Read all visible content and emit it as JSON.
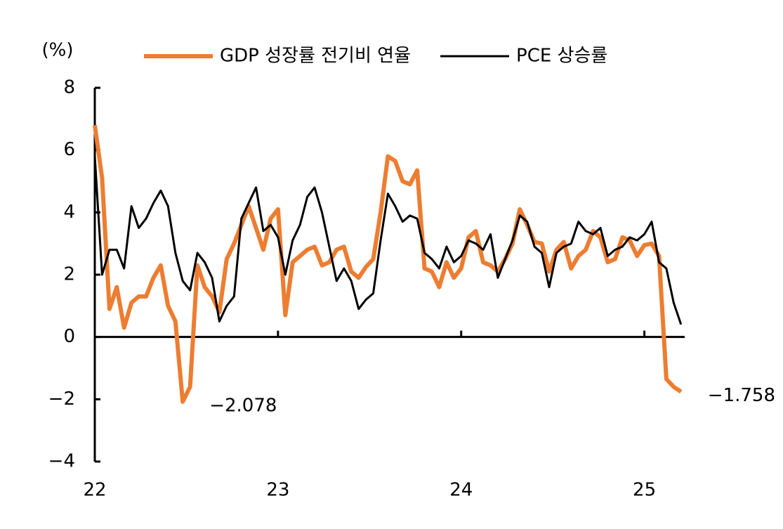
{
  "chart_data": {
    "type": "line",
    "y_label": "(%)",
    "x": [
      22,
      22.04,
      22.08,
      22.12,
      22.16,
      22.2,
      22.24,
      22.28,
      22.32,
      22.36,
      22.4,
      22.44,
      22.48,
      22.52,
      22.56,
      22.6,
      22.64,
      22.68,
      22.72,
      22.76,
      22.8,
      22.84,
      22.88,
      22.92,
      22.96,
      23,
      23.04,
      23.08,
      23.12,
      23.16,
      23.2,
      23.24,
      23.28,
      23.32,
      23.36,
      23.4,
      23.44,
      23.48,
      23.52,
      23.56,
      23.6,
      23.64,
      23.68,
      23.72,
      23.76,
      23.8,
      23.84,
      23.88,
      23.92,
      23.96,
      24,
      24.04,
      24.08,
      24.12,
      24.16,
      24.2,
      24.24,
      24.28,
      24.32,
      24.36,
      24.4,
      24.44,
      24.48,
      24.52,
      24.56,
      24.6,
      24.64,
      24.68,
      24.72,
      24.76,
      24.8,
      24.84,
      24.88,
      24.92,
      24.96,
      25,
      25.04,
      25.08,
      25.12,
      25.16,
      25.2
    ],
    "series": [
      {
        "name": "GDP 성장률 전기비 연율",
        "color": "#ed7d31",
        "width": 6,
        "values": [
          6.8,
          5.1,
          0.9,
          1.6,
          0.3,
          1.1,
          1.3,
          1.3,
          1.9,
          2.3,
          1.0,
          0.5,
          -2.078,
          -1.6,
          2.3,
          1.6,
          1.3,
          0.8,
          2.5,
          3.0,
          3.6,
          4.2,
          3.5,
          2.8,
          3.8,
          4.1,
          0.7,
          2.4,
          2.6,
          2.8,
          2.9,
          2.3,
          2.4,
          2.8,
          2.9,
          2.1,
          1.9,
          2.25,
          2.5,
          4.0,
          5.8,
          5.65,
          5.0,
          4.9,
          5.35,
          2.2,
          2.1,
          1.6,
          2.4,
          1.9,
          2.2,
          3.2,
          3.4,
          2.4,
          2.3,
          2.1,
          2.5,
          3.0,
          4.1,
          3.6,
          3.05,
          3.0,
          2.1,
          2.8,
          3.05,
          2.2,
          2.6,
          2.8,
          3.4,
          3.2,
          2.4,
          2.5,
          3.2,
          3.1,
          2.6,
          2.95,
          3.0,
          2.6,
          -1.35,
          -1.6,
          -1.758
        ],
        "value_labels": [
          null,
          null,
          null,
          null,
          null,
          null,
          null,
          null,
          null,
          null,
          null,
          null,
          "−2.078",
          null,
          null,
          null,
          null,
          null,
          null,
          null,
          null,
          null,
          null,
          null,
          null,
          null,
          null,
          null,
          null,
          null,
          null,
          null,
          null,
          null,
          null,
          null,
          null,
          null,
          null,
          null,
          null,
          null,
          null,
          null,
          null,
          null,
          null,
          null,
          null,
          null,
          null,
          null,
          null,
          null,
          null,
          null,
          null,
          null,
          null,
          null,
          null,
          null,
          null,
          null,
          null,
          null,
          null,
          null,
          null,
          null,
          null,
          null,
          null,
          null,
          null,
          null,
          null,
          null,
          null,
          null,
          "−1.758"
        ]
      },
      {
        "name": "PCE 상승률",
        "color": "#000000",
        "width": 3,
        "values": [
          5.8,
          2.0,
          2.8,
          2.8,
          2.2,
          4.2,
          3.5,
          3.8,
          4.3,
          4.7,
          4.2,
          2.7,
          1.8,
          1.5,
          2.7,
          2.4,
          1.9,
          0.5,
          1.0,
          1.3,
          3.8,
          4.3,
          4.8,
          3.4,
          3.6,
          3.2,
          2.0,
          3.1,
          3.6,
          4.5,
          4.8,
          4.0,
          2.9,
          1.8,
          2.2,
          1.8,
          0.9,
          1.2,
          1.4,
          3.1,
          4.6,
          4.2,
          3.7,
          3.9,
          3.8,
          2.7,
          2.5,
          2.2,
          2.9,
          2.4,
          2.6,
          3.1,
          3.0,
          2.8,
          3.3,
          1.9,
          2.5,
          3.1,
          3.9,
          3.7,
          2.9,
          2.7,
          1.6,
          2.7,
          2.9,
          3.0,
          3.7,
          3.4,
          3.3,
          3.5,
          2.6,
          2.8,
          2.9,
          3.2,
          3.1,
          3.3,
          3.7,
          2.4,
          2.2,
          1.1,
          0.4
        ]
      }
    ],
    "xlim": [
      22,
      25.22
    ],
    "xticks": [
      22,
      23,
      24,
      25
    ],
    "ylim": [
      -4,
      8
    ],
    "yticks": [
      {
        "value": -4,
        "label": "−4"
      },
      {
        "value": -2,
        "label": "−2"
      },
      0,
      2,
      4,
      6,
      8
    ],
    "legend": "top"
  }
}
